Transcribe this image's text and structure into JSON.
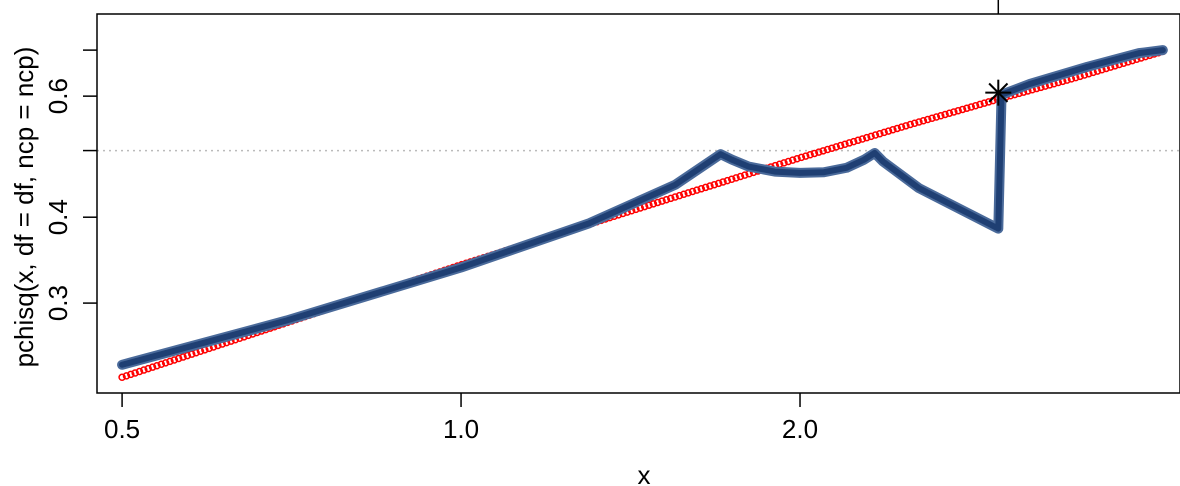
{
  "chart_data": {
    "type": "line",
    "title": "",
    "xlabel": "x",
    "ylabel": "pchisq(x, df = df, ncp = ncp)",
    "x_scale": "log",
    "y_scale": "log",
    "xlim": [
      0.475,
      4.35
    ],
    "ylim": [
      0.222,
      0.79
    ],
    "x_ticks": [
      {
        "value": 0.5,
        "label": "0.5"
      },
      {
        "value": 1.0,
        "label": "1.0"
      },
      {
        "value": 2.0,
        "label": "2.0"
      }
    ],
    "y_ticks": [
      {
        "value": 0.3,
        "label": "0.3"
      },
      {
        "value": 0.4,
        "label": "0.4"
      },
      {
        "value": 0.5,
        "label": ""
      },
      {
        "value": 0.6,
        "label": "0.6"
      },
      {
        "value": 0.7,
        "label": ""
      }
    ],
    "reference_line": {
      "y": 0.5,
      "style": "dotted",
      "color": "#bbbbbb"
    },
    "series": [
      {
        "style": "points",
        "color": "#ff0000",
        "x_range": [
          0.5,
          4.2
        ],
        "count": 240,
        "points": [
          {
            "x": 0.5,
            "y": 0.234
          },
          {
            "x": 1.0,
            "y": 0.341
          },
          {
            "x": 1.5,
            "y": 0.421
          },
          {
            "x": 2.0,
            "y": 0.488
          },
          {
            "x": 2.5,
            "y": 0.545
          },
          {
            "x": 3.0,
            "y": 0.594
          },
          {
            "x": 3.5,
            "y": 0.637
          },
          {
            "x": 4.2,
            "y": 0.697
          }
        ]
      },
      {
        "style": "line",
        "color": "#1f3f73",
        "outline_color": "#4a6a9a",
        "points": [
          {
            "x": 0.5,
            "y": 0.244
          },
          {
            "x": 0.7,
            "y": 0.283
          },
          {
            "x": 1.0,
            "y": 0.338
          },
          {
            "x": 1.3,
            "y": 0.392
          },
          {
            "x": 1.55,
            "y": 0.446
          },
          {
            "x": 1.7,
            "y": 0.494
          },
          {
            "x": 1.74,
            "y": 0.485
          },
          {
            "x": 1.8,
            "y": 0.474
          },
          {
            "x": 1.9,
            "y": 0.466
          },
          {
            "x": 2.0,
            "y": 0.464
          },
          {
            "x": 2.1,
            "y": 0.465
          },
          {
            "x": 2.2,
            "y": 0.472
          },
          {
            "x": 2.28,
            "y": 0.485
          },
          {
            "x": 2.33,
            "y": 0.496
          },
          {
            "x": 2.37,
            "y": 0.482
          },
          {
            "x": 2.55,
            "y": 0.441
          },
          {
            "x": 3.0,
            "y": 0.385
          },
          {
            "x": 3.02,
            "y": 0.603
          },
          {
            "x": 3.2,
            "y": 0.625
          },
          {
            "x": 3.6,
            "y": 0.662
          },
          {
            "x": 4.0,
            "y": 0.693
          },
          {
            "x": 4.2,
            "y": 0.7
          }
        ]
      }
    ],
    "marker": {
      "x": 3.0,
      "y": 0.607,
      "symbol": "asterisk",
      "color": "#000000"
    },
    "top_tick": {
      "x": 3.0
    }
  }
}
